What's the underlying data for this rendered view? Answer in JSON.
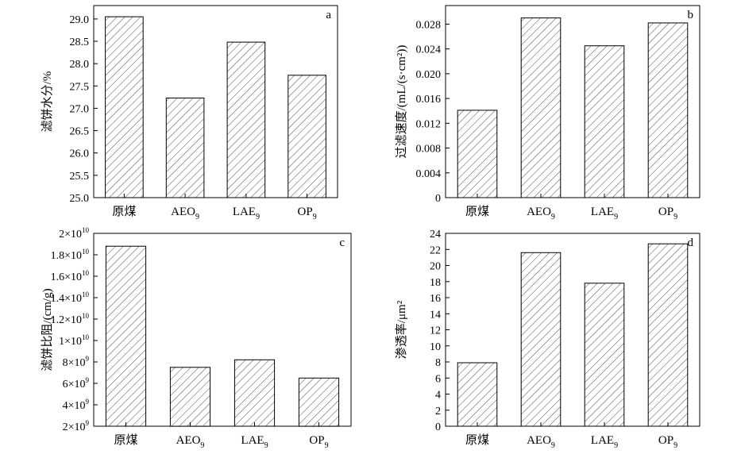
{
  "chart_data": [
    {
      "type": "bar",
      "panel_label": "a",
      "categories": [
        "原煤",
        "AEO",
        "LAE",
        "OP"
      ],
      "category_subscripts": [
        "",
        "9",
        "9",
        "9"
      ],
      "values": [
        29.05,
        27.23,
        28.48,
        27.74
      ],
      "ylabel": "滤饼水分/%",
      "ylim": [
        25.0,
        29.3
      ],
      "yticks": [
        "25.0",
        "25.5",
        "26.0",
        "26.5",
        "27.0",
        "27.5",
        "28.0",
        "28.5",
        "29.0"
      ],
      "ytick_values": [
        25.0,
        25.5,
        26.0,
        26.5,
        27.0,
        27.5,
        28.0,
        28.5,
        29.0
      ],
      "grid": false,
      "fill": "diagonal-hatch"
    },
    {
      "type": "bar",
      "panel_label": "b",
      "categories": [
        "原煤",
        "AEO",
        "LAE",
        "OP"
      ],
      "category_subscripts": [
        "",
        "9",
        "9",
        "9"
      ],
      "values": [
        0.0141,
        0.029,
        0.0245,
        0.0282
      ],
      "ylabel": "过滤速度/(mL/(s·cm²))",
      "ylim": [
        0,
        0.031
      ],
      "yticks": [
        "0",
        "0.004",
        "0.008",
        "0.012",
        "0.016",
        "0.020",
        "0.024",
        "0.028"
      ],
      "ytick_values": [
        0,
        0.004,
        0.008,
        0.012,
        0.016,
        0.02,
        0.024,
        0.028
      ],
      "grid": false,
      "fill": "diagonal-hatch"
    },
    {
      "type": "bar",
      "panel_label": "c",
      "categories": [
        "原煤",
        "AEO",
        "LAE",
        "OP"
      ],
      "category_subscripts": [
        "",
        "9",
        "9",
        "9"
      ],
      "values": [
        18800000000,
        7500000000,
        8200000000,
        6500000000
      ],
      "ylabel": "滤饼比阻/(cm/g)",
      "ylim": [
        2000000000,
        20000000000
      ],
      "yticks": [
        "2×10",
        "4×10",
        "6×10",
        "8×10",
        "1×10",
        "1.2×10",
        "1.4×10",
        "1.6×10",
        "1.8×10",
        "2×10"
      ],
      "ytick_exponents": [
        "9",
        "9",
        "9",
        "9",
        "10",
        "10",
        "10",
        "10",
        "10",
        "10"
      ],
      "ytick_values": [
        2000000000,
        4000000000,
        6000000000,
        8000000000,
        10000000000,
        12000000000,
        14000000000,
        16000000000,
        18000000000,
        20000000000
      ],
      "grid": false,
      "fill": "diagonal-hatch"
    },
    {
      "type": "bar",
      "panel_label": "d",
      "categories": [
        "原煤",
        "AEO",
        "LAE",
        "OP"
      ],
      "category_subscripts": [
        "",
        "9",
        "9",
        "9"
      ],
      "values": [
        7.9,
        21.6,
        17.8,
        22.7
      ],
      "ylabel": "渗透率/μm²",
      "ylim": [
        0,
        24
      ],
      "yticks": [
        "0",
        "2",
        "4",
        "6",
        "8",
        "10",
        "12",
        "14",
        "16",
        "18",
        "20",
        "22",
        "24"
      ],
      "ytick_values": [
        0,
        2,
        4,
        6,
        8,
        10,
        12,
        14,
        16,
        18,
        20,
        22,
        24
      ],
      "grid": false,
      "fill": "diagonal-hatch"
    }
  ]
}
